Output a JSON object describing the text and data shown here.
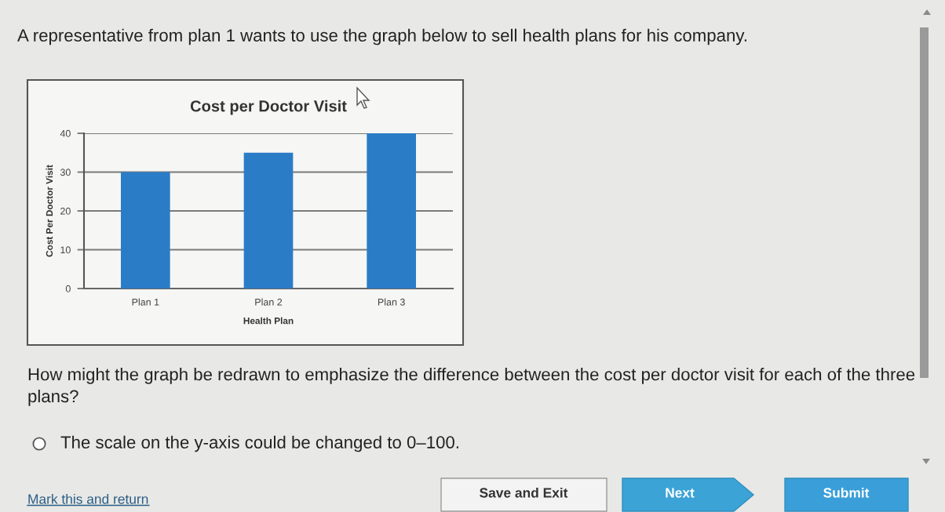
{
  "chart_data": {
    "type": "bar",
    "title": "Cost per Doctor Visit",
    "xlabel": "Health Plan",
    "ylabel": "Cost Per Doctor Visit",
    "categories": [
      "Plan 1",
      "Plan 2",
      "Plan 3"
    ],
    "values": [
      30,
      35,
      40
    ],
    "color": "#2b7cc7",
    "ylim": [
      0,
      40
    ],
    "yticks": [
      0,
      10,
      20,
      30,
      40
    ],
    "grid": "y",
    "annotations": [
      "A representative from plan 1 wants to use the graph below to sell health plans for his company.",
      "How might the graph be redrawn to emphasize the difference between the cost per doctor visit for each of the three plans?",
      "The scale on the y-axis could be changed to 0–100.",
      "Mark this and return",
      "Save and Exit",
      "Next",
      "Submit"
    ]
  }
}
